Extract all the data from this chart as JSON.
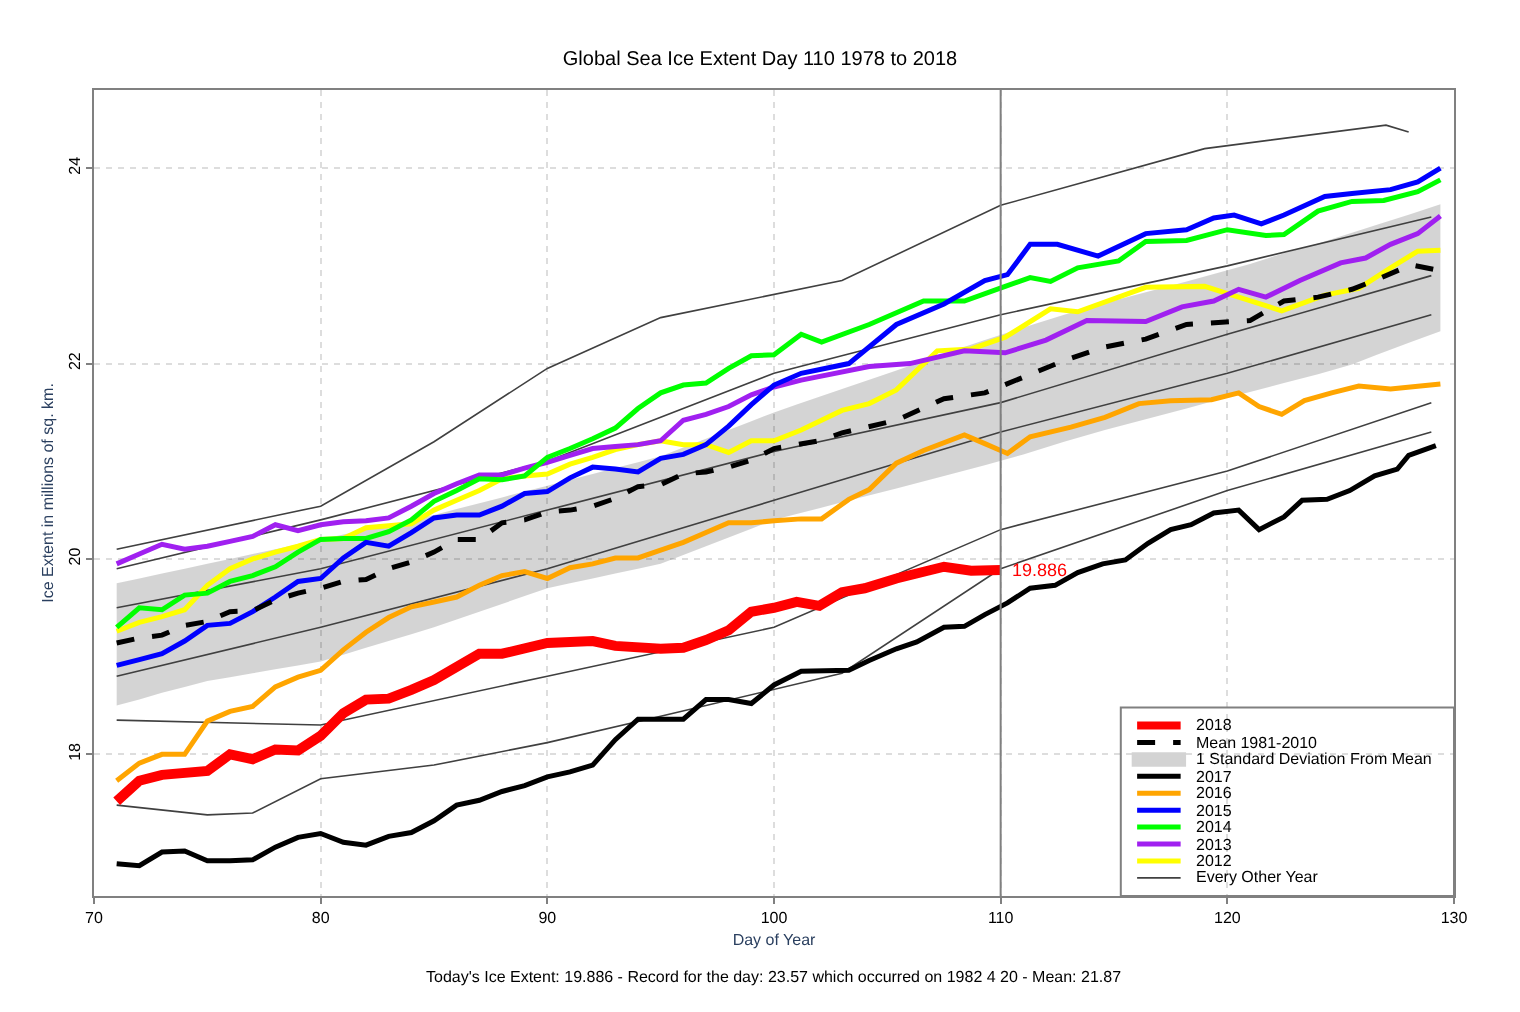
{
  "chart_data": {
    "type": "line",
    "title": "Global Sea Ice Extent Day 110 1978 to 2018",
    "xlabel": "Day of Year",
    "ylabel": "Ice Extent in millions of sq. km.",
    "xlim": [
      70,
      130
    ],
    "xticks": [
      70,
      80,
      90,
      100,
      110,
      120,
      130
    ],
    "ylim": [
      16.55,
      24.8
    ],
    "yticks": [
      18,
      20,
      22,
      24
    ],
    "grid": true,
    "legend": "bottom right",
    "ref_lines": [
      {
        "axis": "x",
        "value": 110,
        "color": "#808080"
      }
    ],
    "annotations": [
      {
        "text": "19.886",
        "x": 110,
        "y": 19.886
      },
      "Today's Ice Extent: 19.886 - Record for the day: 23.57 which occurred on 1982 4 20 - Mean: 21.87"
    ],
    "series": [
      {
        "name": "2018",
        "color": "#ff0000",
        "x": [
          71,
          72,
          73,
          75,
          76,
          77,
          78,
          79,
          80,
          81,
          82,
          83,
          84,
          85,
          87,
          88,
          90,
          92,
          93,
          95,
          96,
          97,
          98,
          99,
          100,
          101,
          102,
          103,
          104,
          105.4,
          107.5,
          108.7,
          110
        ],
        "values": [
          17.52,
          17.73,
          17.79,
          17.83,
          18.0,
          17.95,
          18.05,
          18.04,
          18.19,
          18.42,
          18.56,
          18.57,
          18.66,
          18.76,
          19.03,
          19.03,
          19.14,
          19.16,
          19.11,
          19.08,
          19.09,
          19.17,
          19.27,
          19.46,
          19.5,
          19.56,
          19.52,
          19.66,
          19.7,
          19.8,
          19.92,
          19.88,
          19.886
        ]
      },
      {
        "name": "Mean 1981-2010",
        "color": "#000000",
        "line_style": "dashed",
        "x": [
          71,
          72,
          73,
          74,
          75,
          76,
          77,
          78,
          79,
          80,
          81,
          82,
          83,
          84,
          85,
          86,
          87,
          88,
          89,
          90,
          91,
          92,
          93,
          94,
          95,
          96,
          97,
          98,
          99,
          100,
          101,
          102,
          103,
          105.4,
          107.5,
          109.3,
          111,
          112.8,
          114.6,
          116.4,
          118.2,
          119.6,
          121,
          122.5,
          124,
          125.5,
          126.6,
          128.1,
          129.4
        ],
        "values": [
          19.14,
          19.19,
          19.22,
          19.32,
          19.36,
          19.46,
          19.47,
          19.58,
          19.65,
          19.7,
          19.77,
          19.79,
          19.9,
          19.97,
          20.07,
          20.2,
          20.2,
          20.37,
          20.4,
          20.48,
          20.5,
          20.54,
          20.62,
          20.74,
          20.76,
          20.87,
          20.89,
          20.94,
          21.01,
          21.13,
          21.17,
          21.21,
          21.29,
          21.42,
          21.64,
          21.7,
          21.86,
          22.03,
          22.17,
          22.25,
          22.4,
          22.42,
          22.44,
          22.64,
          22.68,
          22.76,
          22.86,
          23.01,
          22.95
        ],
        "lower": [
          18.5,
          18.56,
          18.63,
          18.69,
          18.75,
          18.79,
          18.83,
          18.87,
          18.91,
          18.95,
          19.02,
          19.09,
          19.16,
          19.23,
          19.3,
          19.38,
          19.46,
          19.54,
          19.62,
          19.7,
          19.75,
          19.8,
          19.85,
          19.9,
          19.95,
          20.04,
          20.13,
          20.22,
          20.31,
          20.4,
          20.46,
          20.52,
          20.58,
          20.72,
          20.85,
          20.96,
          21.07,
          21.2,
          21.32,
          21.43,
          21.54,
          21.63,
          21.71,
          21.8,
          21.89,
          21.99,
          22.09,
          22.22,
          22.33
        ],
        "upper": [
          19.75,
          19.8,
          19.85,
          19.9,
          19.95,
          20.0,
          20.05,
          20.1,
          20.15,
          20.2,
          20.25,
          20.3,
          20.35,
          20.4,
          20.45,
          20.51,
          20.57,
          20.63,
          20.69,
          20.75,
          20.81,
          20.87,
          20.93,
          20.99,
          21.05,
          21.14,
          21.23,
          21.32,
          21.41,
          21.5,
          21.58,
          21.66,
          21.74,
          21.93,
          22.1,
          22.24,
          22.37,
          22.5,
          22.62,
          22.73,
          22.84,
          22.93,
          23.02,
          23.13,
          23.23,
          23.34,
          23.42,
          23.53,
          23.63
        ]
      },
      {
        "name": "1 Standard Deviation From Mean",
        "type": "area",
        "color": "#d3d3d3"
      },
      {
        "name": "2017",
        "color": "#000000",
        "x": [
          71,
          72,
          73,
          74,
          75,
          76,
          77,
          78,
          79,
          80,
          81,
          82,
          83,
          84,
          85,
          86,
          87,
          88,
          89,
          90,
          91,
          92,
          93,
          94,
          95,
          96,
          97,
          98,
          99,
          100,
          101.2,
          103.3,
          104.2,
          105.4,
          106.3,
          107.5,
          108.4,
          109.3,
          110.3,
          111.3,
          112.4,
          113.4,
          114.5,
          115.5,
          116.5,
          117.5,
          118.4,
          119.4,
          120.5,
          121.4,
          122.5,
          123.3,
          124.4,
          125.4,
          126.5,
          127.5,
          128,
          129.2
        ],
        "values": [
          16.88,
          16.86,
          17.0,
          17.01,
          16.91,
          16.91,
          16.92,
          17.05,
          17.15,
          17.19,
          17.1,
          17.07,
          17.16,
          17.2,
          17.32,
          17.48,
          17.53,
          17.62,
          17.68,
          17.77,
          17.82,
          17.89,
          18.15,
          18.36,
          18.36,
          18.36,
          18.56,
          18.56,
          18.52,
          18.71,
          18.85,
          18.86,
          18.96,
          19.08,
          19.15,
          19.3,
          19.31,
          19.43,
          19.55,
          19.7,
          19.73,
          19.86,
          19.95,
          19.99,
          20.16,
          20.3,
          20.35,
          20.47,
          20.5,
          20.3,
          20.43,
          20.6,
          20.61,
          20.7,
          20.85,
          20.92,
          21.06,
          21.16
        ]
      },
      {
        "name": "2016",
        "color": "#ffa500",
        "x": [
          71,
          72,
          73,
          74,
          75,
          76,
          77,
          78,
          79,
          80,
          81,
          82,
          83,
          84,
          85,
          86,
          87,
          88,
          89,
          90,
          91,
          92,
          93,
          94,
          95,
          96,
          97,
          98,
          99,
          100,
          101.2,
          102.1,
          103.3,
          104.2,
          105.4,
          106.6,
          108.4,
          109.3,
          110.3,
          111.3,
          113.1,
          114.6,
          116.1,
          117.5,
          119.3,
          120.5,
          121.4,
          122.4,
          123.4,
          124.6,
          125.8,
          127.2,
          129.4
        ],
        "values": [
          17.73,
          17.91,
          18.0,
          18.0,
          18.34,
          18.44,
          18.49,
          18.69,
          18.79,
          18.86,
          19.07,
          19.25,
          19.4,
          19.51,
          19.56,
          19.61,
          19.73,
          19.83,
          19.87,
          19.8,
          19.91,
          19.95,
          20.01,
          20.01,
          20.09,
          20.17,
          20.27,
          20.37,
          20.37,
          20.39,
          20.41,
          20.41,
          20.61,
          20.71,
          20.98,
          21.11,
          21.27,
          21.18,
          21.08,
          21.25,
          21.35,
          21.45,
          21.59,
          21.62,
          21.63,
          21.7,
          21.56,
          21.48,
          21.62,
          21.7,
          21.77,
          21.74,
          21.79
        ]
      },
      {
        "name": "2015",
        "color": "#0000ff",
        "x": [
          71,
          72,
          73,
          74,
          75,
          76,
          77,
          78,
          79,
          80,
          81,
          82,
          83,
          84,
          85,
          86,
          87,
          88,
          89,
          90,
          91,
          92,
          93,
          94,
          95,
          96,
          97,
          98,
          99,
          100,
          101.2,
          103.3,
          105.4,
          107.5,
          109.3,
          110.3,
          111.3,
          112.5,
          114.3,
          116.4,
          118.2,
          119.4,
          120.3,
          121.5,
          122.5,
          124.3,
          125.5,
          127.2,
          128.4,
          129.4
        ],
        "values": [
          18.91,
          18.97,
          19.03,
          19.16,
          19.32,
          19.34,
          19.46,
          19.61,
          19.77,
          19.8,
          20.01,
          20.17,
          20.13,
          20.27,
          20.42,
          20.45,
          20.45,
          20.54,
          20.67,
          20.69,
          20.83,
          20.94,
          20.92,
          20.89,
          21.03,
          21.07,
          21.17,
          21.36,
          21.58,
          21.78,
          21.9,
          22.0,
          22.4,
          22.61,
          22.85,
          22.91,
          23.22,
          23.22,
          23.1,
          23.33,
          23.37,
          23.49,
          23.52,
          23.43,
          23.52,
          23.71,
          23.74,
          23.78,
          23.86,
          24.0
        ]
      },
      {
        "name": "2014",
        "color": "#00ff00",
        "x": [
          71,
          72,
          73,
          74,
          75,
          76,
          77,
          78,
          79,
          80,
          81,
          82,
          83,
          84,
          85,
          86,
          87,
          88,
          89,
          90,
          91,
          92,
          93,
          94,
          95,
          96,
          97,
          98,
          99,
          100,
          101.2,
          102.1,
          104.2,
          106.6,
          108.4,
          110.2,
          111.3,
          112.2,
          113.4,
          115.2,
          116.4,
          118.2,
          120,
          121.7,
          122.5,
          124,
          125.5,
          126.9,
          128.4,
          129.4
        ],
        "values": [
          19.3,
          19.5,
          19.48,
          19.63,
          19.65,
          19.77,
          19.83,
          19.92,
          20.07,
          20.2,
          20.21,
          20.21,
          20.28,
          20.4,
          20.59,
          20.7,
          20.82,
          20.81,
          20.85,
          21.04,
          21.13,
          21.23,
          21.34,
          21.54,
          21.7,
          21.78,
          21.8,
          21.95,
          22.08,
          22.09,
          22.3,
          22.22,
          22.4,
          22.64,
          22.64,
          22.79,
          22.88,
          22.84,
          22.98,
          23.05,
          23.25,
          23.26,
          23.37,
          23.31,
          23.32,
          23.56,
          23.66,
          23.67,
          23.76,
          23.88
        ]
      },
      {
        "name": "2013",
        "color": "#a020f0",
        "x": [
          71,
          72,
          73,
          74,
          75,
          76,
          77,
          78,
          79,
          80,
          81,
          82,
          83,
          84,
          85,
          86,
          87,
          88,
          89,
          90,
          91,
          92,
          93,
          94,
          95,
          96,
          97,
          98,
          99,
          100,
          101.2,
          104.2,
          106,
          108.4,
          110.2,
          112,
          113.8,
          116.4,
          118,
          119.4,
          120.5,
          121.7,
          123.2,
          125,
          126.1,
          127.2,
          128.4,
          129.4
        ],
        "values": [
          19.95,
          20.05,
          20.15,
          20.1,
          20.13,
          20.18,
          20.23,
          20.35,
          20.29,
          20.35,
          20.38,
          20.39,
          20.42,
          20.54,
          20.67,
          20.77,
          20.86,
          20.86,
          20.93,
          20.99,
          21.06,
          21.13,
          21.15,
          21.17,
          21.21,
          21.42,
          21.48,
          21.56,
          21.68,
          21.76,
          21.83,
          21.97,
          22.0,
          22.13,
          22.11,
          22.24,
          22.44,
          22.43,
          22.58,
          22.64,
          22.76,
          22.68,
          22.85,
          23.03,
          23.08,
          23.22,
          23.33,
          23.51
        ]
      },
      {
        "name": "2012",
        "color": "#ffff00",
        "x": [
          71,
          72,
          73,
          74,
          75,
          76,
          77,
          78,
          79,
          80,
          81,
          82,
          83,
          84,
          85,
          86,
          87,
          88,
          89,
          90,
          91,
          92,
          93,
          94,
          95,
          96,
          97,
          98,
          99,
          100,
          101.2,
          103,
          104.2,
          105.4,
          107.2,
          108.7,
          110.2,
          112.2,
          113.4,
          116.4,
          119,
          120.5,
          122.4,
          124.3,
          125.8,
          127.2,
          128.4,
          129.4
        ],
        "values": [
          19.26,
          19.35,
          19.41,
          19.48,
          19.73,
          19.9,
          20.0,
          20.07,
          20.13,
          20.2,
          20.21,
          20.32,
          20.34,
          20.36,
          20.5,
          20.6,
          20.7,
          20.82,
          20.85,
          20.87,
          20.97,
          21.04,
          21.12,
          21.17,
          21.21,
          21.17,
          21.17,
          21.09,
          21.21,
          21.21,
          21.32,
          21.52,
          21.59,
          21.73,
          22.13,
          22.15,
          22.27,
          22.56,
          22.53,
          22.78,
          22.79,
          22.68,
          22.54,
          22.7,
          22.77,
          22.98,
          23.15,
          23.16
        ]
      },
      {
        "name": "Every Other Year",
        "color": "#404040",
        "x": [
          71,
          80,
          85,
          90,
          95,
          103,
          110,
          119,
          127,
          128
        ],
        "values": [
          20.1,
          20.54,
          21.2,
          21.95,
          22.47,
          22.85,
          23.62,
          24.2,
          24.44,
          24.37
        ]
      },
      {
        "color": "#404040",
        "x": [
          71,
          75,
          77,
          80,
          85,
          90,
          95,
          103,
          110,
          120,
          129
        ],
        "values": [
          17.48,
          17.38,
          17.4,
          17.75,
          17.89,
          18.12,
          18.39,
          18.83,
          19.9,
          20.7,
          21.3
        ]
      },
      {
        "color": "#404040",
        "x": [
          71,
          80,
          90,
          100,
          110,
          120,
          129
        ],
        "values": [
          18.35,
          18.3,
          18.8,
          19.3,
          20.3,
          20.9,
          21.6
        ]
      },
      {
        "color": "#404040",
        "x": [
          71,
          80,
          90,
          100,
          110,
          120,
          129
        ],
        "values": [
          19.5,
          19.9,
          20.5,
          21.1,
          21.6,
          22.3,
          22.9
        ]
      },
      {
        "color": "#404040",
        "x": [
          71,
          80,
          90,
          100,
          110,
          120,
          129
        ],
        "values": [
          18.8,
          19.3,
          19.9,
          20.6,
          21.3,
          21.9,
          22.5
        ]
      },
      {
        "color": "#404040",
        "x": [
          71,
          80,
          90,
          100,
          110,
          120,
          129
        ],
        "values": [
          19.9,
          20.4,
          21.0,
          21.9,
          22.5,
          23.0,
          23.5
        ]
      }
    ]
  }
}
